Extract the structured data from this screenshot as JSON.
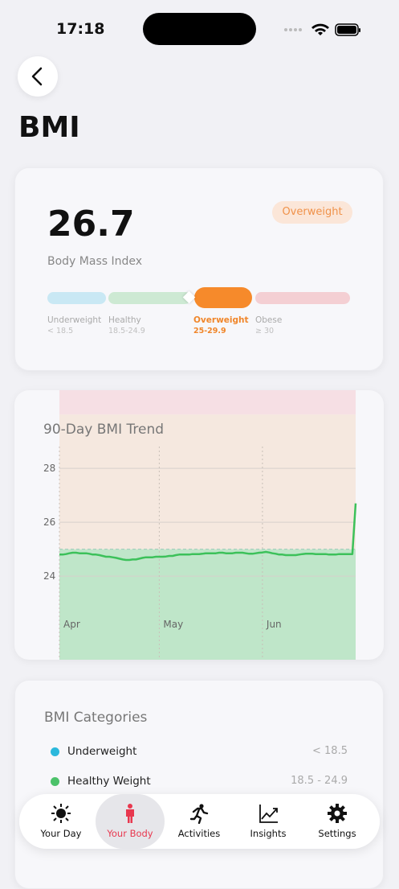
{
  "status_bar": {
    "time": "17:18"
  },
  "header": {
    "title": "BMI"
  },
  "summary": {
    "value": 26.7,
    "label": "Body Mass Index",
    "badge": "Overweight",
    "scale": [
      {
        "name": "Underweight",
        "range": "< 18.5"
      },
      {
        "name": "Healthy",
        "range": "18.5-24.9"
      },
      {
        "name": "Overweight",
        "range": "25-29.9"
      },
      {
        "name": "Obese",
        "range": "≥ 30"
      }
    ]
  },
  "chart_data": {
    "type": "line",
    "title": "90-Day BMI Trend",
    "categories": [
      "Apr",
      null,
      null,
      null,
      null,
      null,
      null,
      null,
      null,
      null,
      null,
      null,
      null,
      null,
      null,
      null,
      null,
      null,
      null,
      null,
      null,
      null,
      null,
      null,
      null,
      null,
      null,
      null,
      null,
      null,
      "May",
      null,
      null,
      null,
      null,
      null,
      null,
      null,
      null,
      null,
      null,
      null,
      null,
      null,
      null,
      null,
      null,
      null,
      null,
      null,
      null,
      null,
      null,
      null,
      null,
      null,
      null,
      null,
      null,
      null,
      null,
      "Jun",
      null,
      null,
      null,
      null,
      null,
      null,
      null,
      null,
      null,
      null,
      null,
      null,
      null,
      null,
      null,
      null,
      null,
      null,
      null,
      null,
      null,
      null,
      null,
      null,
      null,
      null,
      null,
      null
    ],
    "values": [
      24.8,
      24.8,
      24.82,
      24.85,
      24.87,
      24.87,
      24.85,
      24.85,
      24.85,
      24.83,
      24.8,
      24.8,
      24.78,
      24.75,
      24.72,
      24.72,
      24.7,
      24.68,
      24.65,
      24.62,
      24.6,
      24.6,
      24.62,
      24.62,
      24.65,
      24.68,
      24.7,
      24.7,
      24.7,
      24.72,
      24.72,
      24.72,
      24.73,
      24.75,
      24.75,
      24.78,
      24.8,
      24.8,
      24.8,
      24.8,
      24.82,
      24.82,
      24.82,
      24.83,
      24.85,
      24.85,
      24.85,
      24.85,
      24.87,
      24.87,
      24.85,
      24.85,
      24.85,
      24.87,
      24.87,
      24.87,
      24.85,
      24.83,
      24.83,
      24.85,
      24.87,
      24.88,
      24.9,
      24.88,
      24.85,
      24.83,
      24.8,
      24.8,
      24.78,
      24.78,
      24.78,
      24.78,
      24.8,
      24.82,
      24.83,
      24.83,
      24.83,
      24.82,
      24.82,
      24.82,
      24.82,
      24.8,
      24.8,
      24.8,
      24.82,
      24.82,
      24.82,
      24.82,
      24.82,
      26.7
    ],
    "color": "#3cc15a",
    "ylim": [
      20.9,
      30.9
    ],
    "yticks": [
      24,
      26,
      28
    ],
    "grid": true,
    "band_edges": [
      25,
      30
    ],
    "band_colors": [
      "#bfe6c9",
      "#f5e8df",
      "#f6dfe4"
    ],
    "reference_line": 25
  },
  "categories_card": {
    "title": "BMI Categories",
    "rows": [
      {
        "name": "Underweight",
        "range": "< 18.5",
        "color": "#2bb8dc"
      },
      {
        "name": "Healthy Weight",
        "range": "18.5 - 24.9",
        "color": "#4cc26a"
      }
    ]
  },
  "tab_bar": {
    "tabs": [
      "Your Day",
      "Your Body",
      "Activities",
      "Insights",
      "Settings"
    ],
    "active": 1
  }
}
